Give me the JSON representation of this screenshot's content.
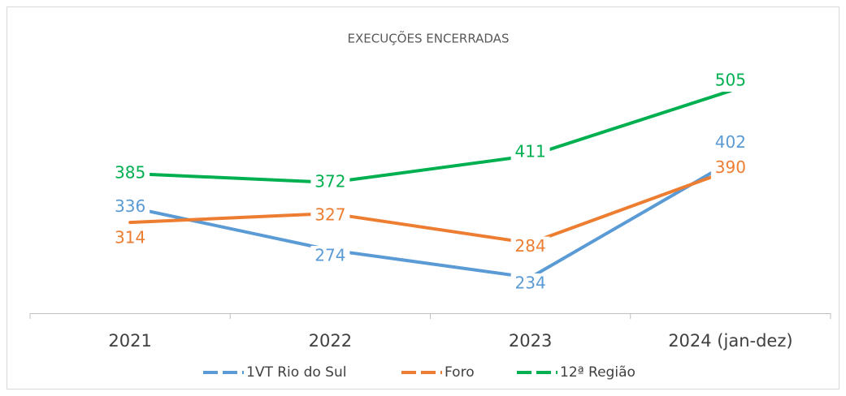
{
  "chart_data": {
    "type": "line",
    "title": "EXECUÇÕES ENCERRADAS",
    "categories": [
      "2021",
      "2022",
      "2023",
      "2024 (jan-dez)"
    ],
    "series": [
      {
        "name": "1VT Rio do Sul",
        "color": "#5b9bd5",
        "values": [
          336,
          274,
          234,
          402
        ]
      },
      {
        "name": "Foro",
        "color": "#ed7d31",
        "values": [
          314,
          327,
          284,
          390
        ]
      },
      {
        "name": "12ª Região",
        "color": "#00b050",
        "values": [
          385,
          372,
          411,
          505
        ]
      }
    ],
    "legend": "bottom"
  }
}
